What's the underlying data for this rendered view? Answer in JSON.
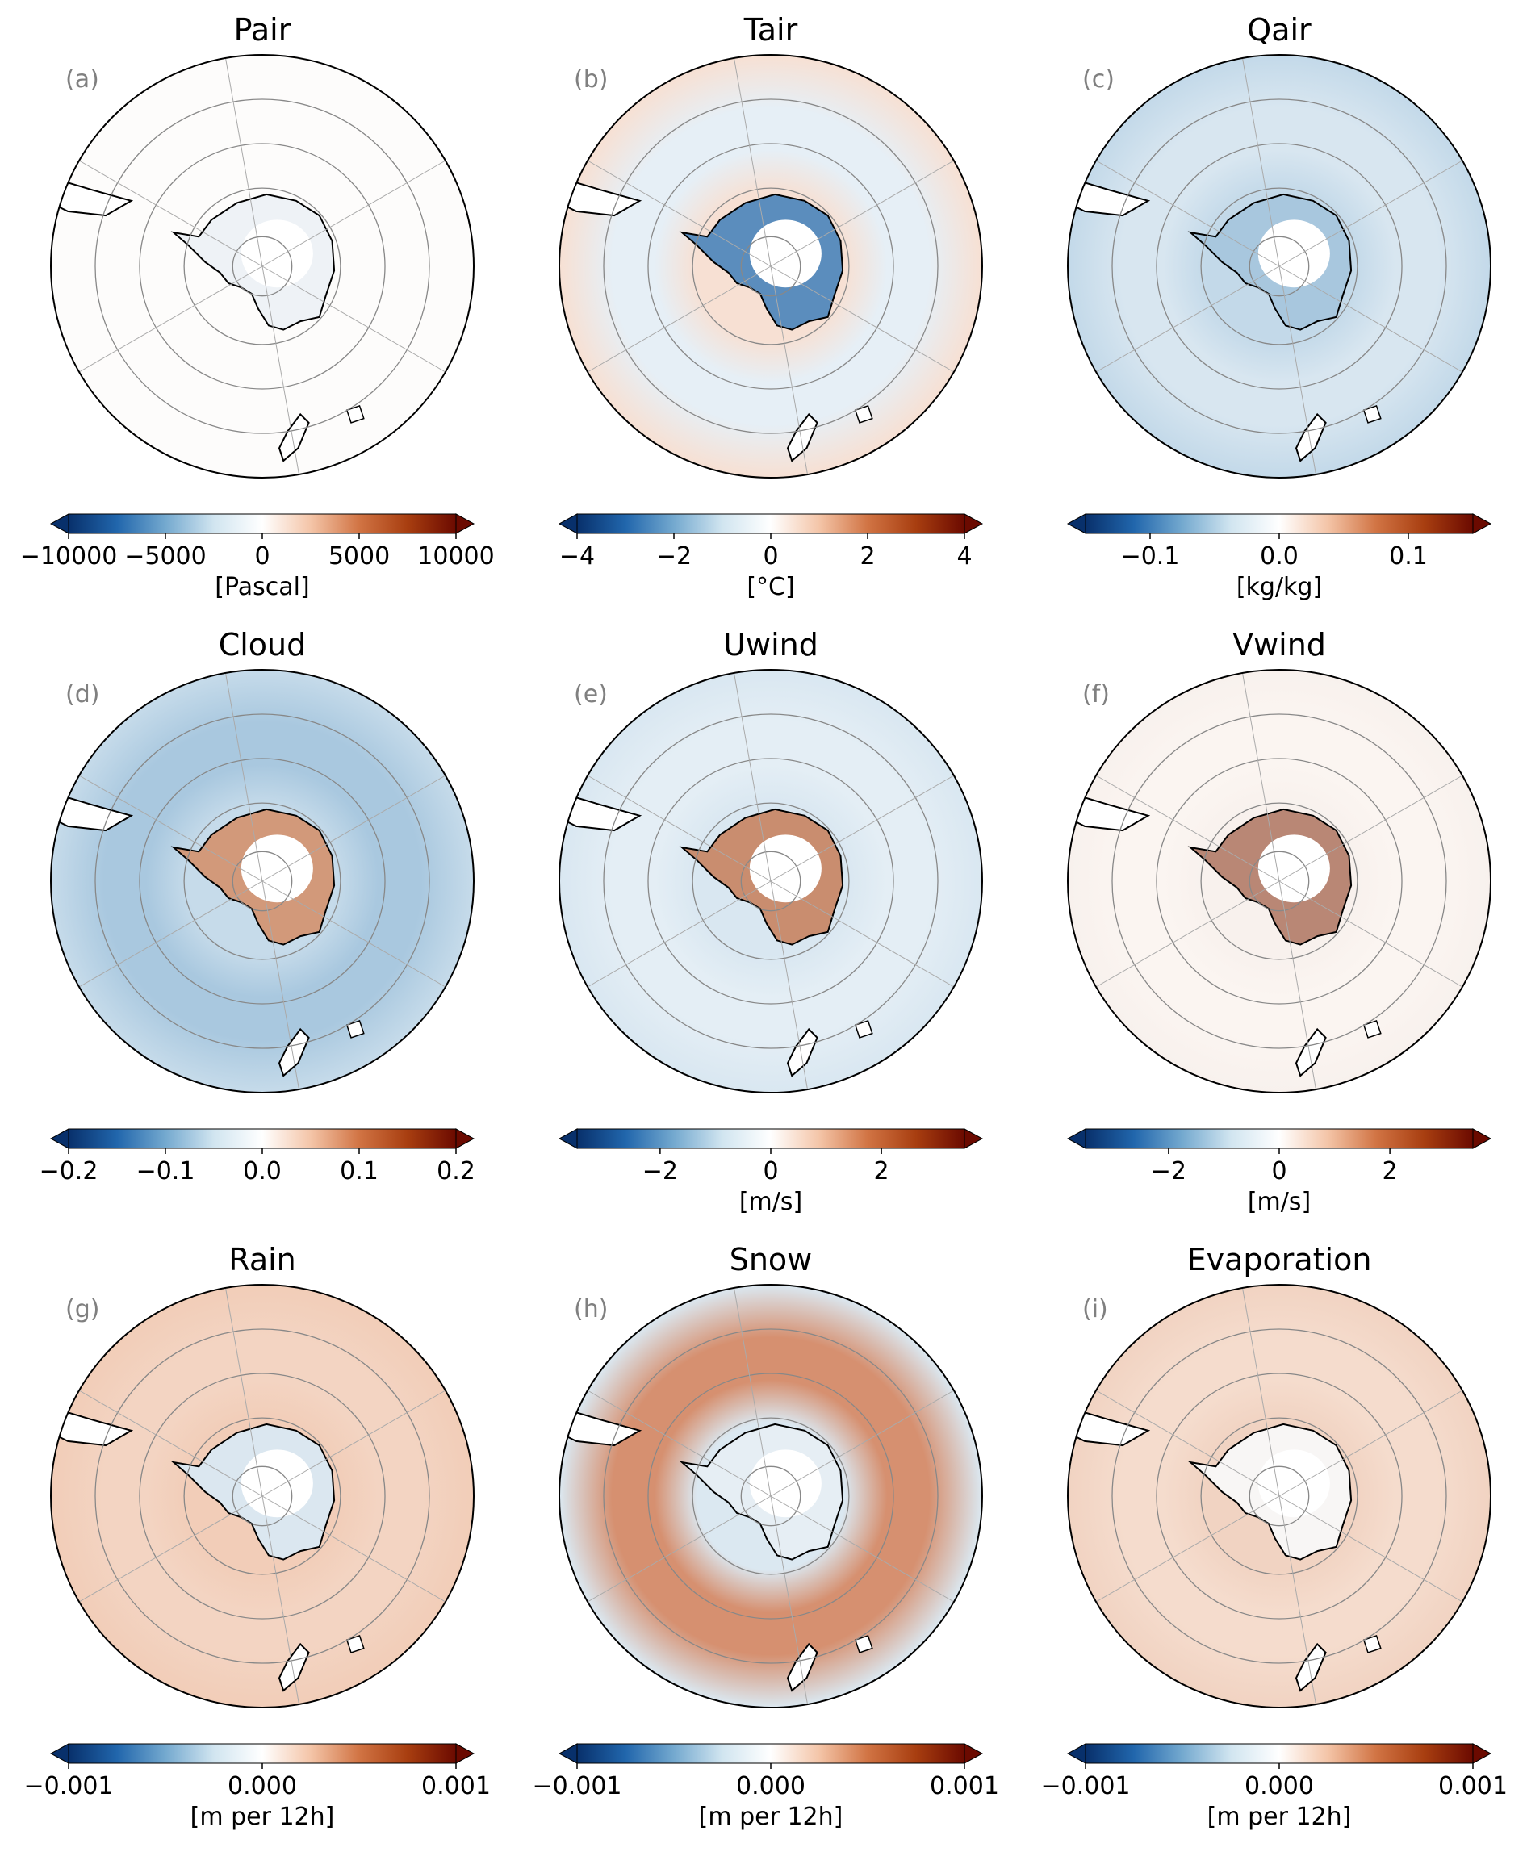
{
  "figure": {
    "colormap": {
      "negative_end": "#08306b",
      "mid": "#ffffff",
      "positive_end": "#6b0a00",
      "stops": [
        "#08306b",
        "#2166ac",
        "#74a9cf",
        "#d1e5f0",
        "#ffffff",
        "#f4c5a8",
        "#d17444",
        "#a83e10",
        "#6b0a00"
      ]
    },
    "land_color": "#ffffff",
    "coast_color": "#000000",
    "grid_color": "#888888"
  },
  "chart_data": [
    {
      "type": "heatmap",
      "projection": "south-polar-stereographic",
      "title": "Pair",
      "letter": "(a)",
      "colorbar": {
        "ticks": [
          "−10000",
          "−5000",
          "0",
          "5000",
          "10000"
        ],
        "tick_values": [
          -10000,
          -5000,
          0,
          5000,
          10000
        ],
        "range": [
          -10000,
          10000
        ],
        "unit": "[Pascal]",
        "extend": "both"
      },
      "pattern": {
        "ocean": "#fdfcfb",
        "ring": "#fdfcfb",
        "continent": "#eef2f6"
      }
    },
    {
      "type": "heatmap",
      "projection": "south-polar-stereographic",
      "title": "Tair",
      "letter": "(b)",
      "colorbar": {
        "ticks": [
          "−4",
          "−2",
          "0",
          "2",
          "4"
        ],
        "tick_values": [
          -4,
          -2,
          0,
          2,
          4
        ],
        "range": [
          -4,
          4
        ],
        "unit": "[°C]",
        "extend": "both"
      },
      "pattern": {
        "ocean": "#f7e0d3",
        "ring": "#e6eff6",
        "continent": "#5b8dbd"
      }
    },
    {
      "type": "heatmap",
      "projection": "south-polar-stereographic",
      "title": "Qair",
      "letter": "(c)",
      "colorbar": {
        "ticks": [
          "−0.1",
          "0.0",
          "0.1"
        ],
        "tick_values": [
          -0.1,
          0.0,
          0.1
        ],
        "range": [
          -0.15,
          0.15
        ],
        "unit": "[kg/kg]",
        "extend": "both"
      },
      "pattern": {
        "ocean": "#c3d9e9",
        "ring": "#d8e6f0",
        "continent": "#a8c7de"
      }
    },
    {
      "type": "heatmap",
      "projection": "south-polar-stereographic",
      "title": "Cloud",
      "letter": "(d)",
      "colorbar": {
        "ticks": [
          "−0.2",
          "−0.1",
          "0.0",
          "0.1",
          "0.2"
        ],
        "tick_values": [
          -0.2,
          -0.1,
          0.0,
          0.1,
          0.2
        ],
        "range": [
          -0.2,
          0.2
        ],
        "unit": "",
        "extend": "both"
      },
      "pattern": {
        "ocean": "#c6dbea",
        "ring": "#a9c8df",
        "continent": "#d2997a"
      }
    },
    {
      "type": "heatmap",
      "projection": "south-polar-stereographic",
      "title": "Uwind",
      "letter": "(e)",
      "colorbar": {
        "ticks": [
          "−2",
          "0",
          "2"
        ],
        "tick_values": [
          -2,
          0,
          2
        ],
        "range": [
          -3.5,
          3.5
        ],
        "unit": "[m/s]",
        "extend": "both"
      },
      "pattern": {
        "ocean": "#d9e7f1",
        "ring": "#e4eef5",
        "continent": "#c98d6f"
      }
    },
    {
      "type": "heatmap",
      "projection": "south-polar-stereographic",
      "title": "Vwind",
      "letter": "(f)",
      "colorbar": {
        "ticks": [
          "−2",
          "0",
          "2"
        ],
        "tick_values": [
          -2,
          0,
          2
        ],
        "range": [
          -3.5,
          3.5
        ],
        "unit": "[m/s]",
        "extend": "both"
      },
      "pattern": {
        "ocean": "#f8f1ed",
        "ring": "#fbf5f1",
        "continent": "#b98775"
      }
    },
    {
      "type": "heatmap",
      "projection": "south-polar-stereographic",
      "title": "Rain",
      "letter": "(g)",
      "colorbar": {
        "ticks": [
          "−0.001",
          "0.000",
          "0.001"
        ],
        "tick_values": [
          -0.001,
          0.0,
          0.001
        ],
        "range": [
          -0.001,
          0.001
        ],
        "unit": "[m per 12h]",
        "extend": "both"
      },
      "pattern": {
        "ocean": "#f2cdb8",
        "ring": "#f3d4c2",
        "continent": "#dbe7f0"
      }
    },
    {
      "type": "heatmap",
      "projection": "south-polar-stereographic",
      "title": "Snow",
      "letter": "(h)",
      "colorbar": {
        "ticks": [
          "−0.001",
          "0.000",
          "0.001"
        ],
        "tick_values": [
          -0.001,
          0.0,
          0.001
        ],
        "range": [
          -0.001,
          0.001
        ],
        "unit": "[m per 12h]",
        "extend": "both"
      },
      "pattern": {
        "ocean": "#dbe8f1",
        "ring": "#d69070",
        "continent": "#e6eef4"
      }
    },
    {
      "type": "heatmap",
      "projection": "south-polar-stereographic",
      "title": "Evaporation",
      "letter": "(i)",
      "colorbar": {
        "ticks": [
          "−0.001",
          "0.000",
          "0.001"
        ],
        "tick_values": [
          -0.001,
          0.0,
          0.001
        ],
        "range": [
          -0.001,
          0.001
        ],
        "unit": "[m per 12h]",
        "extend": "both"
      },
      "pattern": {
        "ocean": "#f1d3c2",
        "ring": "#f5dccd",
        "continent": "#f8f6f5"
      }
    }
  ]
}
